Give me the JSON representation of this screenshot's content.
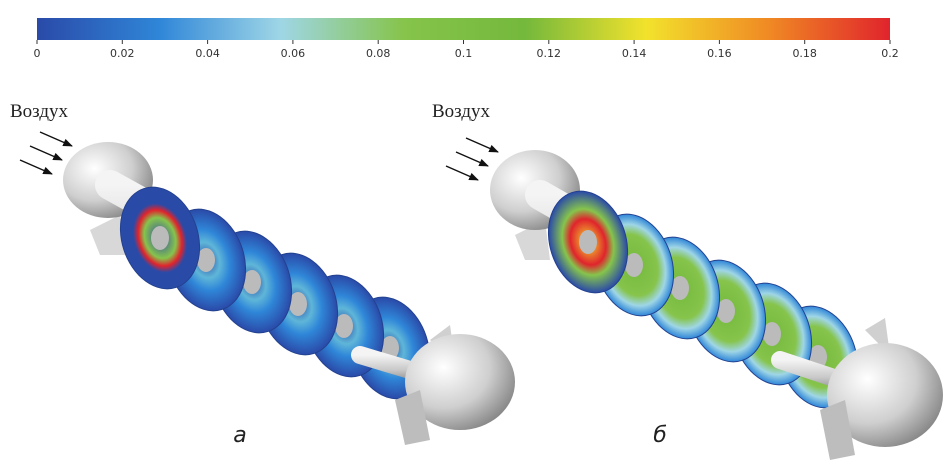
{
  "colorbar": {
    "lim": [
      0,
      0.2
    ],
    "ticks": [
      0,
      0.02,
      0.04,
      0.06,
      0.08,
      0.1,
      0.12,
      0.14,
      0.16,
      0.18,
      0.2
    ],
    "colors": [
      "#2a4aa8",
      "#2f86d8",
      "#9fd6e6",
      "#86c44c",
      "#74b83c",
      "#f2e22c",
      "#f08a24",
      "#e0242c"
    ]
  },
  "panels": [
    {
      "inlet_label": "Воздух",
      "caption": "а"
    },
    {
      "inlet_label": "Воздух",
      "caption": "б"
    }
  ]
}
